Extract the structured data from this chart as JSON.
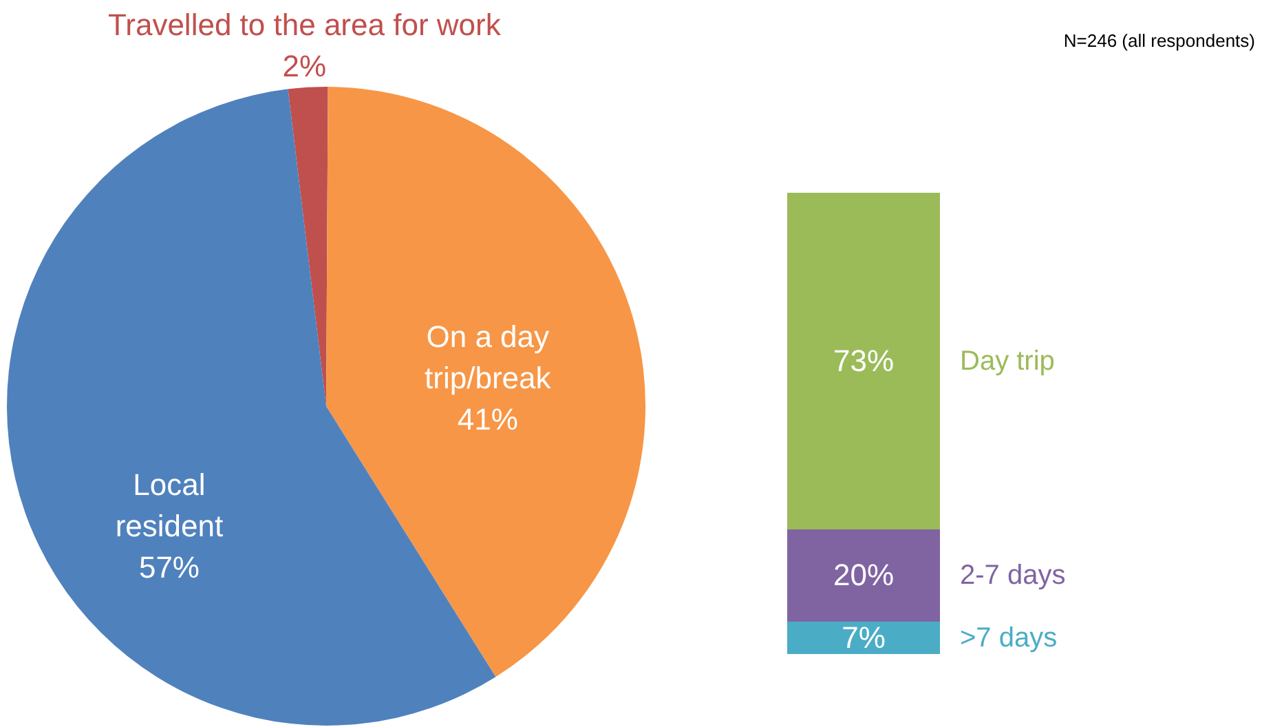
{
  "chart_data": [
    {
      "type": "pie",
      "categories": [
        "Travelled to the area for work",
        "On a day trip/break",
        "Local resident"
      ],
      "values": [
        2,
        41,
        57
      ],
      "colors": [
        "#c0504d",
        "#f79646",
        "#4f81bd"
      ],
      "value_labels": [
        "2%",
        "41%",
        "57%"
      ]
    },
    {
      "type": "bar",
      "stacked": true,
      "categories": [
        null
      ],
      "ylim": [
        0,
        100
      ],
      "tick_labels": false,
      "annotations": [
        "N=246 (all respondents)"
      ],
      "series": [
        {
          "name": ">7 days",
          "color": "#4bacc6",
          "values": [
            7
          ],
          "value_labels": [
            "7%"
          ]
        },
        {
          "name": "2-7 days",
          "color": "#8064a2",
          "values": [
            20
          ],
          "value_labels": [
            "20%"
          ]
        },
        {
          "name": "Day trip",
          "color": "#9bbb59",
          "values": [
            73
          ],
          "value_labels": [
            "73%"
          ]
        }
      ]
    }
  ]
}
